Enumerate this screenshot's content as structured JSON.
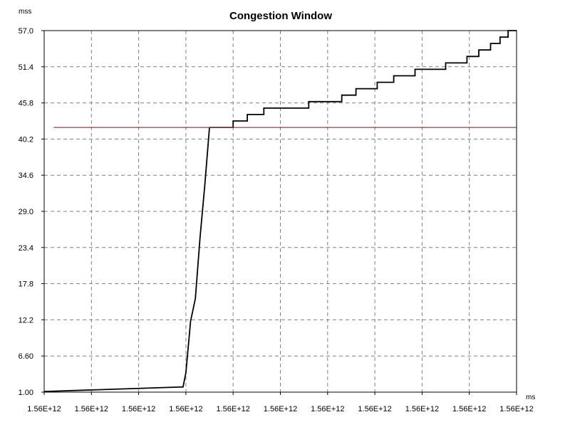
{
  "chart_data": {
    "type": "line",
    "title": "Congestion Window",
    "ylabel": "mss",
    "xlabel": "ms",
    "ylim": [
      1.0,
      57.0
    ],
    "xlim": [
      0,
      10
    ],
    "grid": true,
    "y_ticks": [
      {
        "value": 1.0,
        "label": "1.00"
      },
      {
        "value": 6.6,
        "label": "6.60"
      },
      {
        "value": 12.2,
        "label": "12.2"
      },
      {
        "value": 17.8,
        "label": "17.8"
      },
      {
        "value": 23.4,
        "label": "23.4"
      },
      {
        "value": 29.0,
        "label": "29.0"
      },
      {
        "value": 34.6,
        "label": "34.6"
      },
      {
        "value": 40.2,
        "label": "40.2"
      },
      {
        "value": 45.8,
        "label": "45.8"
      },
      {
        "value": 51.4,
        "label": "51.4"
      },
      {
        "value": 57.0,
        "label": "57.0"
      }
    ],
    "x_ticks": [
      {
        "value": 0,
        "label": "1.56E+12"
      },
      {
        "value": 1,
        "label": "1.56E+12"
      },
      {
        "value": 2,
        "label": "1.56E+12"
      },
      {
        "value": 3,
        "label": "1.56E+12"
      },
      {
        "value": 4,
        "label": "1.56E+12"
      },
      {
        "value": 5,
        "label": "1.56E+12"
      },
      {
        "value": 6,
        "label": "1.56E+12"
      },
      {
        "value": 7,
        "label": "1.56E+12"
      },
      {
        "value": 8,
        "label": "1.56E+12"
      },
      {
        "value": 9,
        "label": "1.56E+12"
      },
      {
        "value": 10,
        "label": "1.56E+12"
      }
    ],
    "series": [
      {
        "color": "#000000",
        "points": [
          [
            0.0,
            1.1
          ],
          [
            2.94,
            1.8
          ],
          [
            3.0,
            4.0
          ],
          [
            3.1,
            12.0
          ],
          [
            3.2,
            15.5
          ],
          [
            3.3,
            25.0
          ],
          [
            3.4,
            33.0
          ],
          [
            3.5,
            42.0
          ],
          [
            4.0,
            42.0
          ],
          [
            4.0,
            43.0
          ],
          [
            4.3,
            43.0
          ],
          [
            4.3,
            44.0
          ],
          [
            4.65,
            44.0
          ],
          [
            4.65,
            45.0
          ],
          [
            5.6,
            45.0
          ],
          [
            5.6,
            46.0
          ],
          [
            6.3,
            46.0
          ],
          [
            6.3,
            47.0
          ],
          [
            6.6,
            47.0
          ],
          [
            6.6,
            48.0
          ],
          [
            7.05,
            48.0
          ],
          [
            7.05,
            49.0
          ],
          [
            7.4,
            49.0
          ],
          [
            7.4,
            50.0
          ],
          [
            7.85,
            50.0
          ],
          [
            7.85,
            51.0
          ],
          [
            8.5,
            51.0
          ],
          [
            8.5,
            52.0
          ],
          [
            8.95,
            52.0
          ],
          [
            8.95,
            53.0
          ],
          [
            9.2,
            53.0
          ],
          [
            9.2,
            54.0
          ],
          [
            9.45,
            54.0
          ],
          [
            9.45,
            55.0
          ],
          [
            9.65,
            55.0
          ],
          [
            9.65,
            56.0
          ],
          [
            9.82,
            56.0
          ],
          [
            9.82,
            57.0
          ],
          [
            10.0,
            57.0
          ]
        ]
      },
      {
        "color": "#b03030",
        "points": [
          [
            0.2,
            42.0
          ],
          [
            10.0,
            42.0
          ]
        ]
      }
    ]
  }
}
